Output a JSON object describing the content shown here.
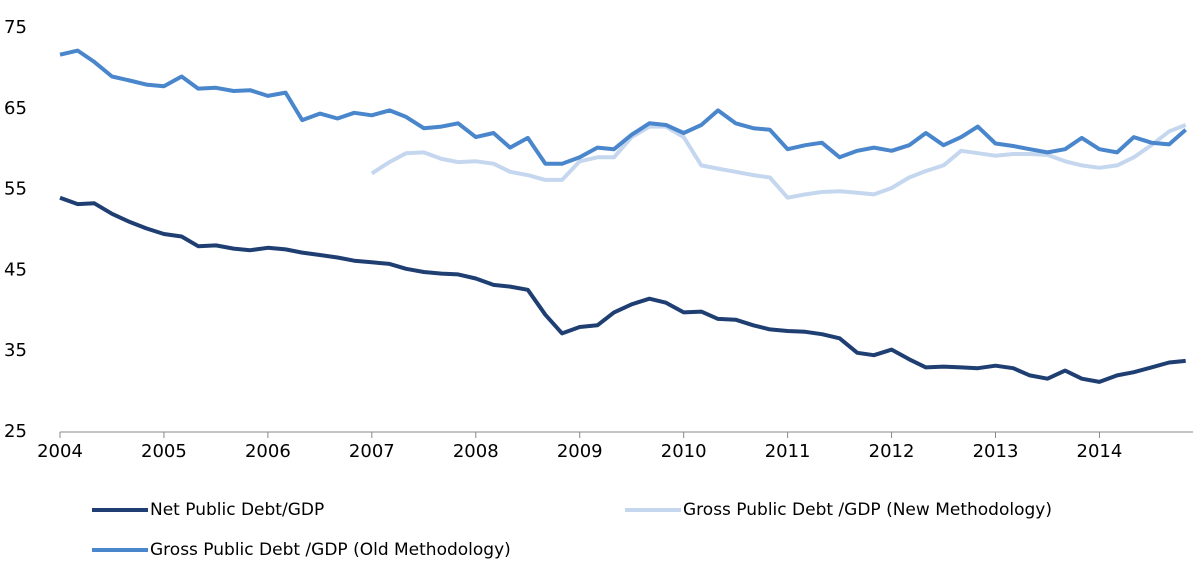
{
  "chart_data": {
    "type": "line",
    "x": [
      2004,
      2004.17,
      2004.33,
      2004.5,
      2004.67,
      2004.83,
      2005,
      2005.17,
      2005.33,
      2005.5,
      2005.67,
      2005.83,
      2006,
      2006.17,
      2006.33,
      2006.5,
      2006.67,
      2006.83,
      2007,
      2007.17,
      2007.33,
      2007.5,
      2007.67,
      2007.83,
      2008,
      2008.17,
      2008.33,
      2008.5,
      2008.67,
      2008.83,
      2009,
      2009.17,
      2009.33,
      2009.5,
      2009.67,
      2009.83,
      2010,
      2010.17,
      2010.33,
      2010.5,
      2010.67,
      2010.83,
      2011,
      2011.17,
      2011.33,
      2011.5,
      2011.67,
      2011.83,
      2012,
      2012.17,
      2012.33,
      2012.5,
      2012.67,
      2012.83,
      2013,
      2013.17,
      2013.33,
      2013.5,
      2013.67,
      2013.83,
      2014,
      2014.17,
      2014.33,
      2014.5,
      2014.67,
      2014.83
    ],
    "series": [
      {
        "name": "Net Public Debt/GDP",
        "color": "#1f3f73",
        "values": [
          54,
          53.2,
          53.3,
          52,
          51,
          50.2,
          49.5,
          49.2,
          48,
          48.1,
          47.7,
          47.5,
          47.8,
          47.6,
          47.2,
          46.9,
          46.6,
          46.2,
          46,
          45.8,
          45.2,
          44.8,
          44.6,
          44.5,
          44,
          43.2,
          43,
          42.6,
          39.5,
          37.2,
          38,
          38.2,
          39.8,
          40.8,
          41.5,
          41,
          39.8,
          39.9,
          39,
          38.9,
          38.2,
          37.7,
          37.5,
          37.4,
          37.1,
          36.6,
          34.8,
          34.5,
          35.2,
          34,
          33,
          33.1,
          33,
          32.9,
          33.2,
          32.9,
          32,
          31.6,
          32.6,
          31.6,
          31.2,
          32,
          32.4,
          33,
          33.6,
          33.8
        ]
      },
      {
        "name": "Gross Public Debt /GDP (New Methodology)",
        "color": "#c5d7ee",
        "values": [
          null,
          null,
          null,
          null,
          null,
          null,
          null,
          null,
          null,
          null,
          null,
          null,
          null,
          null,
          null,
          null,
          null,
          null,
          57,
          58.4,
          59.5,
          59.6,
          58.8,
          58.4,
          58.5,
          58.2,
          57.2,
          56.8,
          56.2,
          56.2,
          58.5,
          59,
          59,
          61.5,
          62.8,
          62.8,
          61.5,
          58,
          57.6,
          57.2,
          56.8,
          56.5,
          54,
          54.4,
          54.7,
          54.8,
          54.6,
          54.4,
          55.2,
          56.5,
          57.3,
          58,
          59.8,
          59.5,
          59.2,
          59.4,
          59.4,
          59.3,
          58.5,
          58,
          57.7,
          58,
          59,
          60.5,
          62.2,
          63
        ]
      },
      {
        "name": "Gross Public Debt /GDP (Old Methodology)",
        "color": "#4a86cc",
        "values": [
          71.7,
          72.2,
          70.8,
          69,
          68.5,
          68,
          67.8,
          69,
          67.5,
          67.6,
          67.2,
          67.3,
          66.6,
          67,
          63.6,
          64.4,
          63.8,
          64.5,
          64.2,
          64.8,
          64,
          62.6,
          62.8,
          63.2,
          61.5,
          62,
          60.2,
          61.4,
          58.2,
          58.2,
          59,
          60.2,
          60,
          61.8,
          63.2,
          63,
          62,
          63,
          64.8,
          63.2,
          62.6,
          62.4,
          60,
          60.5,
          60.8,
          59,
          59.8,
          60.2,
          59.8,
          60.5,
          62,
          60.5,
          61.5,
          62.8,
          60.7,
          60.4,
          60,
          59.6,
          60,
          61.4,
          60,
          59.6,
          61.5,
          60.8,
          60.6,
          62.4
        ]
      }
    ],
    "xlim": [
      2004,
      2014.9
    ],
    "xticks": [
      2004,
      2005,
      2006,
      2007,
      2008,
      2009,
      2010,
      2011,
      2012,
      2013,
      2014
    ],
    "ylim": [
      25,
      75
    ],
    "yticks": [
      25,
      35,
      45,
      55,
      65,
      75
    ],
    "grid": false
  }
}
